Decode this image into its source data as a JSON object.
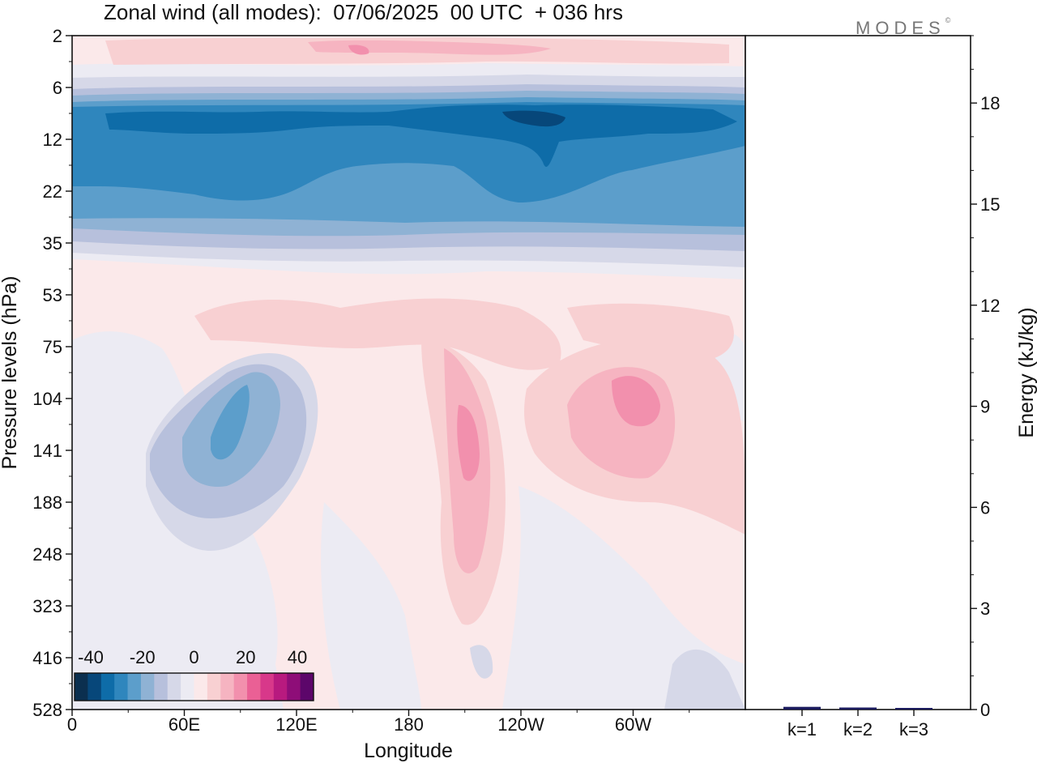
{
  "title": "Zonal wind (all modes):  07/06/2025  00 UTC  + 036 hrs",
  "logo": {
    "text": "MODES",
    "mark": "©"
  },
  "colors": {
    "scale": [
      "#0b2f4f",
      "#07477a",
      "#0e6ca8",
      "#2f86bd",
      "#5c9ecb",
      "#8fb2d4",
      "#b7c0dc",
      "#d6d8e8",
      "#ecebf3",
      "#fbe9ea",
      "#f8d0d2",
      "#f6b4c1",
      "#f290ad",
      "#ea6095",
      "#d8388a",
      "#b81a7f",
      "#8e0d78",
      "#5c066a"
    ],
    "background_positive_weak": "#fbe9ea",
    "background_negative_weak": "#ecebf3",
    "bars": "#1a1a5e"
  },
  "chart_data": [
    {
      "type": "heatmap",
      "title": "Zonal wind (all modes):  07/06/2025  00 UTC  + 036 hrs",
      "xlabel": "Longitude",
      "ylabel": "Pressure levels (hPa)",
      "x_ticks": [
        "0",
        "60E",
        "120E",
        "180",
        "120W",
        "60W"
      ],
      "y_ticks": [
        "2",
        "6",
        "12",
        "22",
        "35",
        "53",
        "75",
        "104",
        "141",
        "188",
        "248",
        "323",
        "416",
        "528"
      ],
      "y_scale": "log, top = 2 hPa, bottom = 528 hPa",
      "colorbar": {
        "labels": [
          "-40",
          "-20",
          "0",
          "20",
          "40"
        ],
        "range": [
          -40,
          40
        ]
      },
      "features": [
        {
          "label": "stratospheric easterly jet core",
          "lon_range": [
            10,
            350
          ],
          "level_range": [
            8,
            28
          ],
          "value": -30
        },
        {
          "label": "westerlies near top",
          "lon_range": [
            30,
            350
          ],
          "level_range": [
            2,
            4
          ],
          "value": 10
        },
        {
          "label": "easterly maximum over 60E-120E",
          "lon_center": 85,
          "level_center": 130,
          "value": -18
        },
        {
          "label": "westerly maximum near 160W",
          "lon_center": 205,
          "level_center": 120,
          "value": 25
        },
        {
          "label": "westerly maximum near 60W",
          "lon_center": 295,
          "level_center": 105,
          "value": 22
        }
      ]
    },
    {
      "type": "bar",
      "categories": [
        "k=1",
        "k=2",
        "k=3"
      ],
      "values": [
        0.08,
        0.06,
        0.04
      ],
      "ylabel": "Energy (kJ/kg)",
      "ylim": [
        0,
        20
      ],
      "y_ticks": [
        "0",
        "3",
        "6",
        "9",
        "12",
        "15",
        "18"
      ]
    }
  ]
}
